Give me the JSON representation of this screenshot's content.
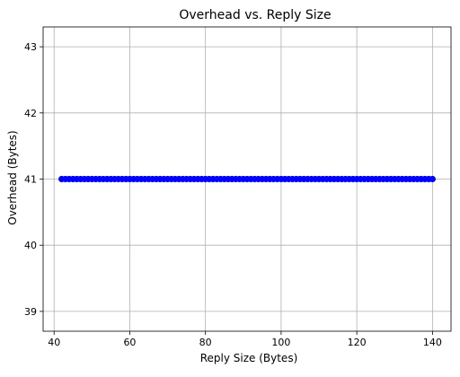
{
  "chart_data": {
    "type": "line",
    "title": "Overhead vs. Reply Size",
    "xlabel": "Reply Size (Bytes)",
    "ylabel": "Overhead (Bytes)",
    "xlim": [
      37.1,
      144.9
    ],
    "ylim": [
      38.7,
      43.3
    ],
    "xticks": [
      40,
      60,
      80,
      100,
      120,
      140
    ],
    "yticks": [
      39,
      40,
      41,
      42,
      43
    ],
    "grid": true,
    "series": [
      {
        "color": "#0000ff",
        "marker": "circle",
        "x_start": 42,
        "x_end": 140,
        "x_step": 1,
        "y_constant": 41
      }
    ]
  }
}
